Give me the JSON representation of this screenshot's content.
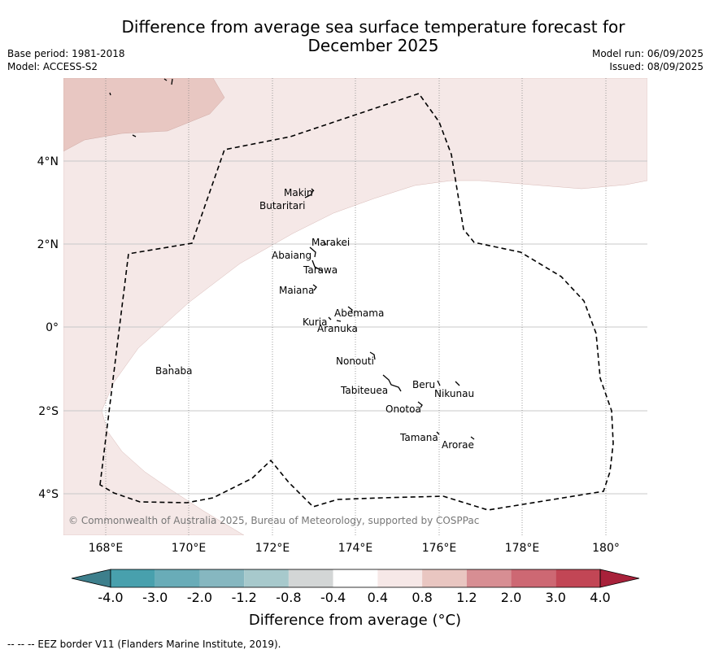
{
  "title": "Difference from average sea surface temperature forecast for December 2025",
  "title_line1": "Difference from average sea surface temperature forecast for",
  "title_line2": "December 2025",
  "base_period": "Base period: 1981-2018",
  "model": "Model: ACCESS-S2",
  "model_run": "Model run: 06/09/2025",
  "issued": "Issued: 08/09/2025",
  "copyright": "© Commonwealth of Australia 2025, Bureau of Meteorology, supported by COSPPac",
  "lon_ticks": [
    "168°E",
    "170°E",
    "172°E",
    "174°E",
    "176°E",
    "178°E",
    "180°"
  ],
  "lat_ticks": [
    "4°N",
    "2°N",
    "0°",
    "2°S",
    "4°S"
  ],
  "places": [
    {
      "name": "Makin"
    },
    {
      "name": "Butaritari"
    },
    {
      "name": "Marakei"
    },
    {
      "name": "Abaiang"
    },
    {
      "name": "Tarawa"
    },
    {
      "name": "Maiana"
    },
    {
      "name": "Abemama"
    },
    {
      "name": "Kuria"
    },
    {
      "name": "Aranuka"
    },
    {
      "name": "Banaba"
    },
    {
      "name": "Nonouti"
    },
    {
      "name": "Beru"
    },
    {
      "name": "Nikunau"
    },
    {
      "name": "Tabiteuea"
    },
    {
      "name": "Onotoa"
    },
    {
      "name": "Tamana"
    },
    {
      "name": "Arorae"
    }
  ],
  "colorbar": {
    "title": "Difference from average (°C)",
    "labels": [
      "-4.0",
      "-3.0",
      "-2.0",
      "-1.2",
      "-0.8",
      "-0.4",
      "0.4",
      "0.8",
      "1.2",
      "2.0",
      "3.0",
      "4.0"
    ],
    "colors": [
      "#3d7f8c",
      "#48a0ad",
      "#69acb8",
      "#86b7c0",
      "#a7c9cc",
      "#d3d6d6",
      "#ffffff",
      "#f6e8e7",
      "#e9c6c1",
      "#d78e93",
      "#cd6873",
      "#c24655",
      "#a8213a"
    ]
  },
  "footer": "--  --  -- EEZ border V11 (Flanders Marine Institute, 2019)."
}
